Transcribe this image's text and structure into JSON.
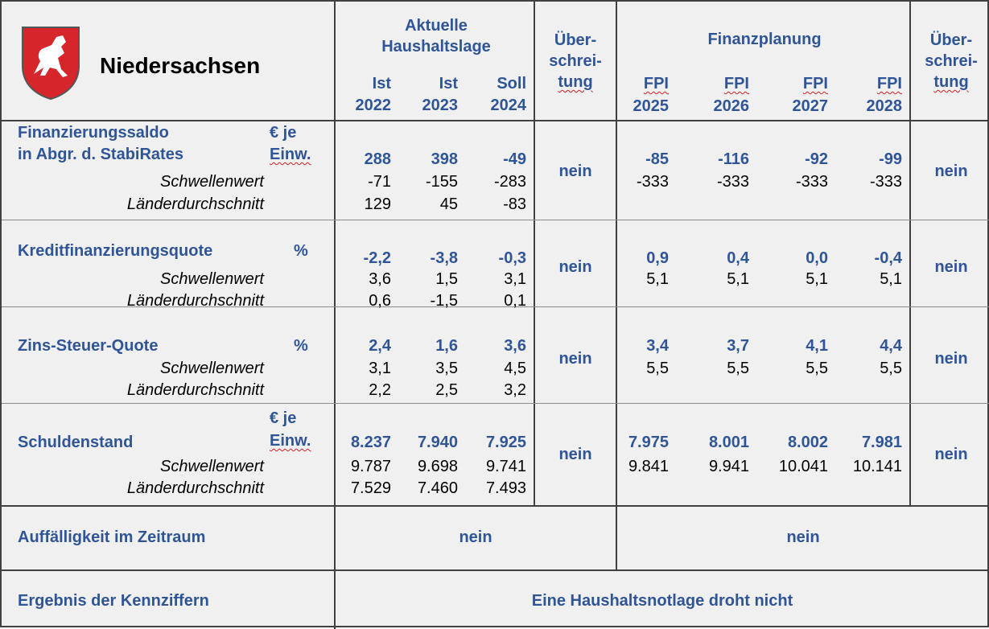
{
  "header": {
    "state": "Niedersachsen",
    "current_group": [
      "Aktuelle",
      "Haushaltslage"
    ],
    "plan_group": "Finanzplanung",
    "exceed": [
      "Über-",
      "schrei-",
      "tung"
    ],
    "current_columns": [
      [
        "Ist",
        "2022"
      ],
      [
        "Ist",
        "2023"
      ],
      [
        "Soll",
        "2024"
      ]
    ],
    "plan_columns": [
      [
        "FPI",
        "2025"
      ],
      [
        "FPI",
        "2026"
      ],
      [
        "FPI",
        "2027"
      ],
      [
        "FPI",
        "2028"
      ]
    ]
  },
  "indicators": [
    {
      "name": [
        "Finanzierungssaldo",
        "in Abgr. d. StabiRates"
      ],
      "unit": [
        "€ je",
        "Einw."
      ],
      "values": [
        "288",
        "398",
        "-49",
        "-85",
        "-116",
        "-92",
        "-99"
      ],
      "threshold_label": "Schwellenwert",
      "threshold": [
        "-71",
        "-155",
        "-283",
        "-333",
        "-333",
        "-333",
        "-333"
      ],
      "average_label": "Länderdurchschnitt",
      "average": [
        "129",
        "45",
        "-83"
      ],
      "exceed_current": "nein",
      "exceed_plan": "nein"
    },
    {
      "name": [
        "Kreditfinanzierungsquote"
      ],
      "unit": [
        "%"
      ],
      "values": [
        "-2,2",
        "-3,8",
        "-0,3",
        "0,9",
        "0,4",
        "0,0",
        "-0,4"
      ],
      "threshold_label": "Schwellenwert",
      "threshold": [
        "3,6",
        "1,5",
        "3,1",
        "5,1",
        "5,1",
        "5,1",
        "5,1"
      ],
      "average_label": "Länderdurchschnitt",
      "average": [
        "0,6",
        "-1,5",
        "0,1"
      ],
      "exceed_current": "nein",
      "exceed_plan": "nein"
    },
    {
      "name": [
        "Zins-Steuer-Quote"
      ],
      "unit": [
        "%"
      ],
      "values": [
        "2,4",
        "1,6",
        "3,6",
        "3,4",
        "3,7",
        "4,1",
        "4,4"
      ],
      "threshold_label": "Schwellenwert",
      "threshold": [
        "3,1",
        "3,5",
        "4,5",
        "5,5",
        "5,5",
        "5,5",
        "5,5"
      ],
      "average_label": "Länderdurchschnitt",
      "average": [
        "2,2",
        "2,5",
        "3,2"
      ],
      "exceed_current": "nein",
      "exceed_plan": "nein"
    },
    {
      "name": [
        "Schuldenstand"
      ],
      "unit": [
        "€ je",
        "Einw."
      ],
      "values": [
        "8.237",
        "7.940",
        "7.925",
        "7.975",
        "8.001",
        "8.002",
        "7.981"
      ],
      "threshold_label": "Schwellenwert",
      "threshold": [
        "9.787",
        "9.698",
        "9.741",
        "9.841",
        "9.941",
        "10.041",
        "10.141"
      ],
      "average_label": "Länderdurchschnitt",
      "average": [
        "7.529",
        "7.460",
        "7.493"
      ],
      "exceed_current": "nein",
      "exceed_plan": "nein"
    }
  ],
  "anomaly": {
    "label": "Auffälligkeit im Zeitraum",
    "current": "nein",
    "plan": "nein"
  },
  "result": {
    "label": "Ergebnis der Kennziffern",
    "value": "Eine Haushaltsnotlage droht nicht"
  }
}
